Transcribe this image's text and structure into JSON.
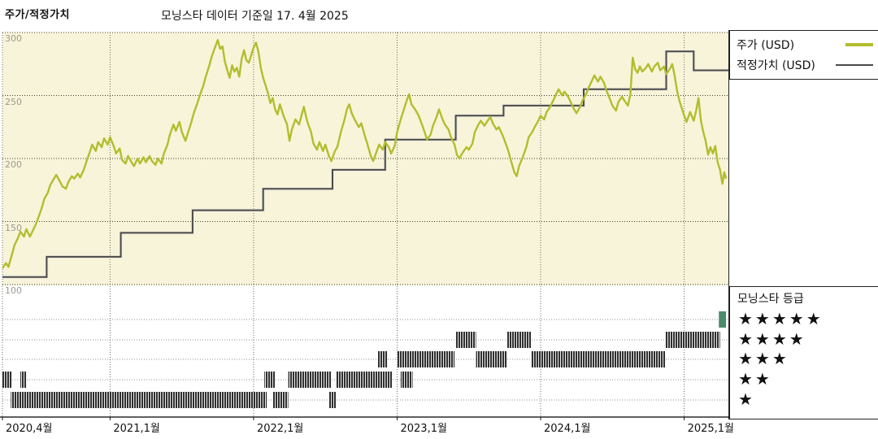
{
  "page": {
    "title": "주가/적정가치",
    "subtitle": "모닝스타 데이터 기준일 17. 4월 2025"
  },
  "legend": {
    "price_label": "주가 (USD)",
    "fair_value_label": "적정가치 (USD)"
  },
  "rating_legend": {
    "title": "모닝스타 등급",
    "star_char": "★"
  },
  "chart_data": {
    "type": "line",
    "title": "주가/적정가치",
    "subtitle": "모닝스타 데이터 기준일 17. 4월 2025",
    "x_axis": {
      "start": "2020-04",
      "end": "2025-04",
      "unit": "months since 2020-04",
      "range": [
        0,
        60.7
      ],
      "ticks": [
        {
          "m": 0,
          "label": "2020,4월"
        },
        {
          "m": 9,
          "label": "2021,1월"
        },
        {
          "m": 21,
          "label": "2022,1월"
        },
        {
          "m": 33,
          "label": "2023,1월"
        },
        {
          "m": 45,
          "label": "2024,1월"
        },
        {
          "m": 57,
          "label": "2025,1월"
        }
      ]
    },
    "y_axis": {
      "ticks": [
        300,
        250,
        200,
        150,
        100
      ],
      "range": [
        100,
        300
      ],
      "grid": "dotted"
    },
    "plot_bg": "#f8f4d9",
    "series": [
      {
        "name": "주가 (USD)",
        "type": "line",
        "color": "#b2bd2e",
        "points": [
          [
            0,
            113
          ],
          [
            0.3,
            117
          ],
          [
            0.5,
            114
          ],
          [
            0.8,
            124
          ],
          [
            1,
            131
          ],
          [
            1.3,
            137
          ],
          [
            1.5,
            142
          ],
          [
            1.8,
            138
          ],
          [
            2,
            144
          ],
          [
            2.3,
            138
          ],
          [
            2.5,
            142
          ],
          [
            2.8,
            148
          ],
          [
            3,
            153
          ],
          [
            3.3,
            161
          ],
          [
            3.5,
            168
          ],
          [
            3.8,
            173
          ],
          [
            4,
            179
          ],
          [
            4.3,
            184
          ],
          [
            4.5,
            187
          ],
          [
            4.8,
            182
          ],
          [
            5,
            178
          ],
          [
            5.3,
            176
          ],
          [
            5.5,
            181
          ],
          [
            5.8,
            186
          ],
          [
            6,
            184
          ],
          [
            6.3,
            188
          ],
          [
            6.5,
            185
          ],
          [
            6.8,
            191
          ],
          [
            7,
            197
          ],
          [
            7.3,
            205
          ],
          [
            7.5,
            211
          ],
          [
            7.8,
            206
          ],
          [
            8,
            213
          ],
          [
            8.3,
            209
          ],
          [
            8.5,
            216
          ],
          [
            8.8,
            211
          ],
          [
            9,
            217
          ],
          [
            9.3,
            210
          ],
          [
            9.5,
            204
          ],
          [
            9.8,
            208
          ],
          [
            10,
            199
          ],
          [
            10.3,
            196
          ],
          [
            10.5,
            202
          ],
          [
            10.8,
            197
          ],
          [
            11,
            194
          ],
          [
            11.3,
            200
          ],
          [
            11.5,
            196
          ],
          [
            11.8,
            201
          ],
          [
            12,
            197
          ],
          [
            12.3,
            202
          ],
          [
            12.5,
            198
          ],
          [
            12.8,
            195
          ],
          [
            13,
            200
          ],
          [
            13.3,
            196
          ],
          [
            13.5,
            204
          ],
          [
            13.8,
            211
          ],
          [
            14,
            219
          ],
          [
            14.3,
            227
          ],
          [
            14.5,
            222
          ],
          [
            14.8,
            229
          ],
          [
            15,
            221
          ],
          [
            15.3,
            214
          ],
          [
            15.5,
            220
          ],
          [
            15.8,
            229
          ],
          [
            16,
            236
          ],
          [
            16.3,
            244
          ],
          [
            16.5,
            250
          ],
          [
            16.8,
            258
          ],
          [
            17,
            265
          ],
          [
            17.3,
            274
          ],
          [
            17.5,
            281
          ],
          [
            17.8,
            289
          ],
          [
            18,
            294
          ],
          [
            18.2,
            287
          ],
          [
            18.4,
            289
          ],
          [
            18.6,
            277
          ],
          [
            18.8,
            270
          ],
          [
            19,
            264
          ],
          [
            19.2,
            274
          ],
          [
            19.4,
            269
          ],
          [
            19.6,
            272
          ],
          [
            19.8,
            265
          ],
          [
            20,
            279
          ],
          [
            20.2,
            286
          ],
          [
            20.4,
            278
          ],
          [
            20.6,
            276
          ],
          [
            20.8,
            282
          ],
          [
            21,
            288
          ],
          [
            21.2,
            292
          ],
          [
            21.4,
            285
          ],
          [
            21.6,
            272
          ],
          [
            21.8,
            264
          ],
          [
            22,
            258
          ],
          [
            22.2,
            252
          ],
          [
            22.4,
            244
          ],
          [
            22.6,
            248
          ],
          [
            22.8,
            239
          ],
          [
            23,
            235
          ],
          [
            23.2,
            243
          ],
          [
            23.5,
            234
          ],
          [
            23.8,
            227
          ],
          [
            24,
            214
          ],
          [
            24.2,
            223
          ],
          [
            24.5,
            231
          ],
          [
            24.8,
            227
          ],
          [
            25,
            234
          ],
          [
            25.2,
            241
          ],
          [
            25.5,
            229
          ],
          [
            25.8,
            221
          ],
          [
            26,
            212
          ],
          [
            26.3,
            207
          ],
          [
            26.5,
            213
          ],
          [
            26.8,
            206
          ],
          [
            27,
            211
          ],
          [
            27.3,
            202
          ],
          [
            27.5,
            198
          ],
          [
            27.8,
            206
          ],
          [
            28,
            209
          ],
          [
            28.3,
            221
          ],
          [
            28.6,
            231
          ],
          [
            28.8,
            239
          ],
          [
            29,
            243
          ],
          [
            29.2,
            236
          ],
          [
            29.5,
            230
          ],
          [
            29.8,
            225
          ],
          [
            30,
            228
          ],
          [
            30.3,
            218
          ],
          [
            30.5,
            212
          ],
          [
            30.8,
            202
          ],
          [
            31,
            198
          ],
          [
            31.3,
            206
          ],
          [
            31.5,
            211
          ],
          [
            31.8,
            207
          ],
          [
            32,
            213
          ],
          [
            32.3,
            209
          ],
          [
            32.5,
            204
          ],
          [
            32.8,
            210
          ],
          [
            33,
            221
          ],
          [
            33.3,
            231
          ],
          [
            33.5,
            237
          ],
          [
            33.8,
            246
          ],
          [
            34,
            251
          ],
          [
            34.2,
            243
          ],
          [
            34.5,
            239
          ],
          [
            34.8,
            234
          ],
          [
            35,
            229
          ],
          [
            35.3,
            221
          ],
          [
            35.5,
            215
          ],
          [
            35.8,
            219
          ],
          [
            36,
            226
          ],
          [
            36.3,
            233
          ],
          [
            36.5,
            239
          ],
          [
            36.8,
            231
          ],
          [
            37,
            227
          ],
          [
            37.3,
            223
          ],
          [
            37.5,
            217
          ],
          [
            37.8,
            211
          ],
          [
            38,
            203
          ],
          [
            38.2,
            200
          ],
          [
            38.5,
            205
          ],
          [
            38.8,
            209
          ],
          [
            39,
            207
          ],
          [
            39.3,
            212
          ],
          [
            39.5,
            221
          ],
          [
            39.8,
            227
          ],
          [
            40,
            230
          ],
          [
            40.3,
            226
          ],
          [
            40.5,
            229
          ],
          [
            40.8,
            233
          ],
          [
            41,
            228
          ],
          [
            41.3,
            223
          ],
          [
            41.5,
            225
          ],
          [
            41.8,
            219
          ],
          [
            42,
            214
          ],
          [
            42.3,
            206
          ],
          [
            42.5,
            199
          ],
          [
            42.8,
            189
          ],
          [
            43,
            186
          ],
          [
            43.2,
            194
          ],
          [
            43.5,
            201
          ],
          [
            43.8,
            209
          ],
          [
            44,
            217
          ],
          [
            44.3,
            221
          ],
          [
            44.5,
            225
          ],
          [
            44.8,
            230
          ],
          [
            45,
            234
          ],
          [
            45.3,
            231
          ],
          [
            45.5,
            237
          ],
          [
            45.8,
            241
          ],
          [
            46,
            245
          ],
          [
            46.3,
            251
          ],
          [
            46.5,
            255
          ],
          [
            46.8,
            250
          ],
          [
            47,
            253
          ],
          [
            47.3,
            249
          ],
          [
            47.5,
            245
          ],
          [
            47.8,
            239
          ],
          [
            48,
            236
          ],
          [
            48.3,
            241
          ],
          [
            48.5,
            246
          ],
          [
            48.8,
            251
          ],
          [
            49,
            256
          ],
          [
            49.3,
            262
          ],
          [
            49.5,
            266
          ],
          [
            49.8,
            261
          ],
          [
            50,
            265
          ],
          [
            50.3,
            260
          ],
          [
            50.5,
            254
          ],
          [
            50.8,
            247
          ],
          [
            51,
            242
          ],
          [
            51.3,
            238
          ],
          [
            51.5,
            245
          ],
          [
            51.8,
            249
          ],
          [
            52,
            246
          ],
          [
            52.3,
            242
          ],
          [
            52.5,
            251
          ],
          [
            52.7,
            280
          ],
          [
            52.9,
            271
          ],
          [
            53.1,
            268
          ],
          [
            53.3,
            273
          ],
          [
            53.5,
            269
          ],
          [
            53.8,
            272
          ],
          [
            54,
            275
          ],
          [
            54.3,
            269
          ],
          [
            54.5,
            273
          ],
          [
            54.8,
            276
          ],
          [
            55,
            270
          ],
          [
            55.3,
            273
          ],
          [
            55.5,
            267
          ],
          [
            55.8,
            271
          ],
          [
            56,
            275
          ],
          [
            56.2,
            266
          ],
          [
            56.4,
            254
          ],
          [
            56.6,
            246
          ],
          [
            56.8,
            240
          ],
          [
            57,
            234
          ],
          [
            57.2,
            229
          ],
          [
            57.5,
            237
          ],
          [
            57.8,
            230
          ],
          [
            58,
            238
          ],
          [
            58.2,
            248
          ],
          [
            58.4,
            230
          ],
          [
            58.6,
            221
          ],
          [
            58.8,
            214
          ],
          [
            59,
            203
          ],
          [
            59.2,
            209
          ],
          [
            59.4,
            204
          ],
          [
            59.6,
            210
          ],
          [
            59.8,
            197
          ],
          [
            60,
            191
          ],
          [
            60.2,
            180
          ],
          [
            60.35,
            189
          ],
          [
            60.5,
            184
          ]
        ]
      },
      {
        "name": "적정가치 (USD)",
        "type": "step",
        "color": "#4a4a4a",
        "points": [
          [
            0,
            106
          ],
          [
            3.7,
            122
          ],
          [
            9.9,
            141
          ],
          [
            15.9,
            159
          ],
          [
            21.8,
            176
          ],
          [
            27.6,
            191
          ],
          [
            32,
            215
          ],
          [
            37.9,
            234
          ],
          [
            41.9,
            242
          ],
          [
            48.6,
            255
          ],
          [
            55.5,
            285
          ],
          [
            57.8,
            270
          ],
          [
            60.7,
            270
          ]
        ]
      }
    ],
    "rating_panel": {
      "title": "모닝스타 등급",
      "levels": [
        5,
        4,
        3,
        2,
        1
      ],
      "bar_color": "#303030",
      "current_bar_color": "#4d8a6d",
      "bars": [
        {
          "stars": 5,
          "color": "#4d8a6d",
          "intervals": [
            [
              59.9,
              60.5
            ]
          ]
        },
        {
          "stars": 4,
          "color": "#303030",
          "intervals": [
            [
              37.9,
              39.6
            ],
            [
              42.2,
              44.2
            ],
            [
              55.4,
              60.0
            ]
          ]
        },
        {
          "stars": 3,
          "color": "#303030",
          "intervals": [
            [
              31.4,
              32.2
            ],
            [
              33.0,
              37.8
            ],
            [
              39.6,
              42.2
            ],
            [
              44.2,
              55.4
            ]
          ]
        },
        {
          "stars": 2,
          "color": "#303030",
          "intervals": [
            [
              0.0,
              0.8
            ],
            [
              1.5,
              2.0
            ],
            [
              21.9,
              22.8
            ],
            [
              23.9,
              27.5
            ],
            [
              27.9,
              32.6
            ],
            [
              33.3,
              34.3
            ]
          ]
        },
        {
          "stars": 1,
          "color": "#303030",
          "intervals": [
            [
              0.7,
              22.1
            ],
            [
              22.6,
              23.9
            ],
            [
              27.3,
              27.9
            ]
          ]
        }
      ]
    }
  }
}
